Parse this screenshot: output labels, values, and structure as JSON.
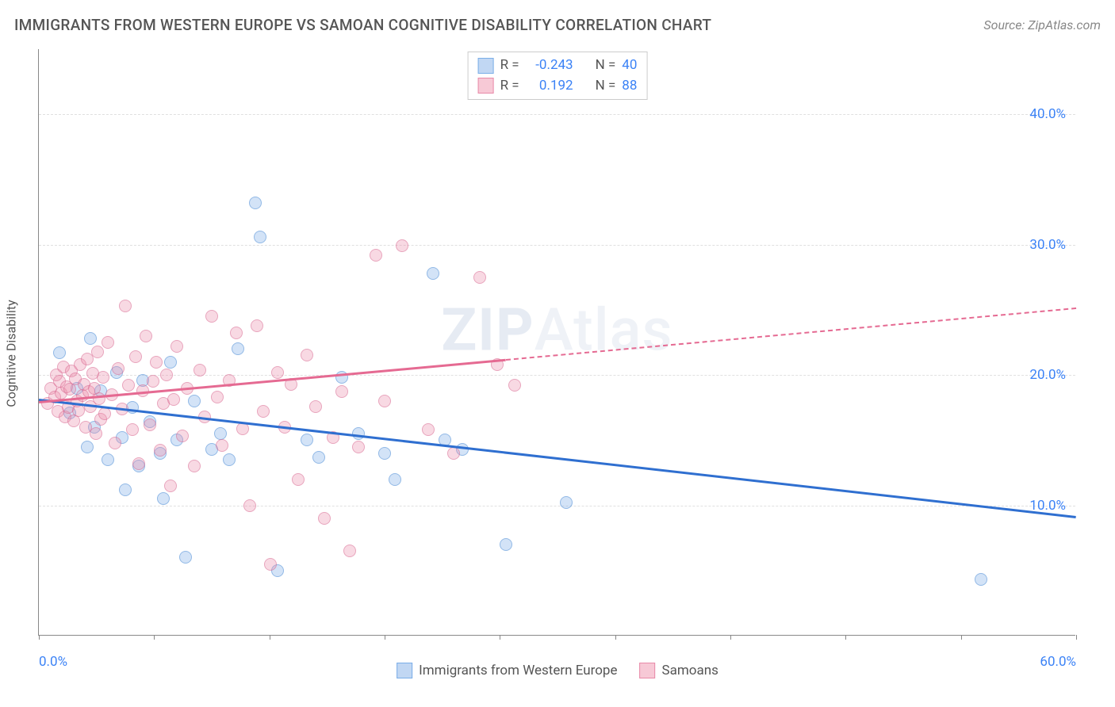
{
  "title": "IMMIGRANTS FROM WESTERN EUROPE VS SAMOAN COGNITIVE DISABILITY CORRELATION CHART",
  "source_label": "Source: ZipAtlas.com",
  "ylabel": "Cognitive Disability",
  "watermark_bold": "ZIP",
  "watermark_rest": "Atlas",
  "grid_color": "#e0e0e0",
  "axis_color": "#888888",
  "background": "#ffffff",
  "xlim": [
    0,
    60
  ],
  "ylim": [
    0,
    45
  ],
  "yticks": [
    {
      "v": 10,
      "label": "10.0%"
    },
    {
      "v": 20,
      "label": "20.0%"
    },
    {
      "v": 30,
      "label": "30.0%"
    },
    {
      "v": 40,
      "label": "40.0%"
    }
  ],
  "xticks_pos": [
    0,
    6.67,
    13.33,
    20,
    26.67,
    33.33,
    40,
    46.67,
    53.33,
    60
  ],
  "xtick_labels": [
    {
      "v": 0,
      "label": "0.0%"
    },
    {
      "v": 60,
      "label": "60.0%"
    }
  ],
  "series": [
    {
      "name": "Immigrants from Western Europe",
      "swatch_fill": "#c1d7f3",
      "swatch_border": "#7aaee8",
      "point_fill": "rgba(120,170,230,0.55)",
      "point_stroke": "#4a8bd6",
      "trend_color": "#2f6fd0",
      "r_label": "R =",
      "r_value": "-0.243",
      "n_label": "N =",
      "n_value": "40",
      "trend": {
        "x1": 0,
        "y1": 18.2,
        "x2": 60,
        "y2": 9.2,
        "solid_until_x": 60,
        "dash": false
      },
      "points": [
        [
          1.2,
          21.7
        ],
        [
          1.8,
          17.1
        ],
        [
          2.2,
          19.0
        ],
        [
          2.8,
          14.5
        ],
        [
          3.0,
          22.8
        ],
        [
          3.2,
          16.0
        ],
        [
          3.6,
          18.8
        ],
        [
          4.0,
          13.5
        ],
        [
          4.5,
          20.2
        ],
        [
          4.8,
          15.2
        ],
        [
          5.0,
          11.2
        ],
        [
          5.4,
          17.5
        ],
        [
          5.8,
          13.0
        ],
        [
          6.0,
          19.6
        ],
        [
          6.4,
          16.4
        ],
        [
          7.0,
          14.0
        ],
        [
          7.2,
          10.5
        ],
        [
          7.6,
          21.0
        ],
        [
          8.0,
          15.0
        ],
        [
          8.5,
          6.0
        ],
        [
          9.0,
          18.0
        ],
        [
          10.0,
          14.3
        ],
        [
          10.5,
          15.5
        ],
        [
          11.0,
          13.5
        ],
        [
          11.5,
          22.0
        ],
        [
          12.5,
          33.2
        ],
        [
          12.8,
          30.6
        ],
        [
          13.8,
          5.0
        ],
        [
          15.5,
          15.0
        ],
        [
          16.2,
          13.7
        ],
        [
          17.5,
          19.8
        ],
        [
          18.5,
          15.5
        ],
        [
          20.0,
          14.0
        ],
        [
          20.6,
          12.0
        ],
        [
          22.8,
          27.8
        ],
        [
          23.5,
          15.0
        ],
        [
          24.5,
          14.3
        ],
        [
          27.0,
          7.0
        ],
        [
          30.5,
          10.2
        ],
        [
          54.5,
          4.3
        ]
      ]
    },
    {
      "name": "Samoans",
      "swatch_fill": "#f7c9d6",
      "swatch_border": "#e88aa8",
      "point_fill": "rgba(235,140,170,0.55)",
      "point_stroke": "#d96a92",
      "trend_color": "#e56a92",
      "r_label": "R =",
      "r_value": "0.192",
      "n_label": "N =",
      "n_value": "88",
      "trend": {
        "x1": 0,
        "y1": 18.0,
        "x2": 60,
        "y2": 25.2,
        "solid_until_x": 27,
        "dash": true
      },
      "points": [
        [
          0.5,
          17.8
        ],
        [
          0.7,
          19.0
        ],
        [
          0.9,
          18.3
        ],
        [
          1.0,
          20.0
        ],
        [
          1.1,
          17.2
        ],
        [
          1.2,
          19.5
        ],
        [
          1.3,
          18.6
        ],
        [
          1.4,
          20.6
        ],
        [
          1.5,
          16.8
        ],
        [
          1.6,
          19.1
        ],
        [
          1.7,
          17.5
        ],
        [
          1.8,
          18.9
        ],
        [
          1.9,
          20.3
        ],
        [
          2.0,
          16.5
        ],
        [
          2.1,
          19.7
        ],
        [
          2.2,
          18.0
        ],
        [
          2.3,
          17.3
        ],
        [
          2.4,
          20.8
        ],
        [
          2.5,
          18.4
        ],
        [
          2.6,
          19.3
        ],
        [
          2.7,
          16.0
        ],
        [
          2.8,
          21.2
        ],
        [
          2.9,
          18.7
        ],
        [
          3.0,
          17.6
        ],
        [
          3.1,
          20.1
        ],
        [
          3.2,
          19.0
        ],
        [
          3.3,
          15.5
        ],
        [
          3.4,
          21.8
        ],
        [
          3.5,
          18.2
        ],
        [
          3.6,
          16.6
        ],
        [
          3.7,
          19.8
        ],
        [
          3.8,
          17.0
        ],
        [
          4.0,
          22.5
        ],
        [
          4.2,
          18.5
        ],
        [
          4.4,
          14.8
        ],
        [
          4.6,
          20.5
        ],
        [
          4.8,
          17.4
        ],
        [
          5.0,
          25.3
        ],
        [
          5.2,
          19.2
        ],
        [
          5.4,
          15.8
        ],
        [
          5.6,
          21.4
        ],
        [
          5.8,
          13.2
        ],
        [
          6.0,
          18.8
        ],
        [
          6.2,
          23.0
        ],
        [
          6.4,
          16.2
        ],
        [
          6.6,
          19.5
        ],
        [
          6.8,
          21.0
        ],
        [
          7.0,
          14.2
        ],
        [
          7.2,
          17.8
        ],
        [
          7.4,
          20.0
        ],
        [
          7.6,
          11.5
        ],
        [
          7.8,
          18.1
        ],
        [
          8.0,
          22.2
        ],
        [
          8.3,
          15.3
        ],
        [
          8.6,
          19.0
        ],
        [
          9.0,
          13.0
        ],
        [
          9.3,
          20.4
        ],
        [
          9.6,
          16.8
        ],
        [
          10.0,
          24.5
        ],
        [
          10.3,
          18.3
        ],
        [
          10.6,
          14.6
        ],
        [
          11.0,
          19.6
        ],
        [
          11.4,
          23.2
        ],
        [
          11.8,
          15.9
        ],
        [
          12.2,
          10.0
        ],
        [
          12.6,
          23.8
        ],
        [
          13.0,
          17.2
        ],
        [
          13.4,
          5.5
        ],
        [
          13.8,
          20.2
        ],
        [
          14.2,
          16.0
        ],
        [
          14.6,
          19.3
        ],
        [
          15.0,
          12.0
        ],
        [
          15.5,
          21.5
        ],
        [
          16.0,
          17.6
        ],
        [
          16.5,
          9.0
        ],
        [
          17.0,
          15.2
        ],
        [
          17.5,
          18.7
        ],
        [
          18.0,
          6.5
        ],
        [
          18.5,
          14.5
        ],
        [
          19.5,
          29.2
        ],
        [
          20.0,
          18.0
        ],
        [
          21.0,
          29.9
        ],
        [
          22.5,
          15.8
        ],
        [
          24.0,
          14.0
        ],
        [
          25.5,
          27.5
        ],
        [
          26.5,
          20.8
        ],
        [
          27.5,
          19.2
        ]
      ]
    }
  ],
  "legend_bottom": [
    {
      "label": "Immigrants from Western Europe",
      "series": 0
    },
    {
      "label": "Samoans",
      "series": 1
    }
  ]
}
